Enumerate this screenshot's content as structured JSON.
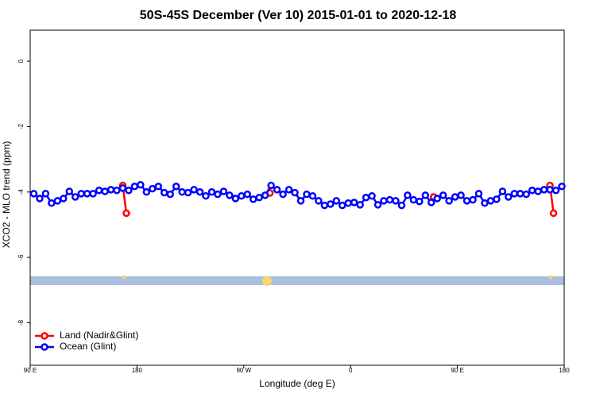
{
  "chart_data": {
    "type": "line",
    "title": "50S-45S December (Ver 10)   2015-01-01 to 2020-12-18",
    "x_label": "Longitude (deg E)",
    "y_label": "XCO2 - MLO trend (ppm)",
    "xlim": [
      90,
      540
    ],
    "xticks": [
      {
        "value": 90,
        "label": "90 E"
      },
      180,
      {
        "value": 270,
        "label": "90 W"
      },
      {
        "value": 360,
        "label": "0"
      },
      {
        "value": 450,
        "label": "90 E"
      },
      {
        "value": 540,
        "label": "180"
      }
    ],
    "ylim": [
      -9.3,
      0.95
    ],
    "yticks": [
      0,
      -2,
      -4,
      -6,
      -8
    ],
    "legend": "bottom-left",
    "series": [
      {
        "name": "Land (Nadir&Glint)",
        "color": "#ff0000",
        "x": [
          168,
          171,
          null,
          292,
          null,
          430,
          null,
          528,
          531
        ],
        "values": [
          -3.8,
          -4.65,
          null,
          -4.03,
          null,
          -4.15,
          null,
          -3.8,
          -4.65
        ]
      },
      {
        "name": "Ocean (Glint)",
        "color": "#0000ff",
        "x": [
          93,
          98,
          103,
          108,
          113,
          118,
          123,
          128,
          133,
          138,
          143,
          148,
          153,
          158,
          163,
          168,
          173,
          178,
          183,
          188,
          193,
          198,
          203,
          208,
          213,
          218,
          223,
          228,
          233,
          238,
          243,
          248,
          253,
          258,
          263,
          268,
          273,
          278,
          283,
          288,
          293,
          298,
          303,
          308,
          313,
          318,
          323,
          328,
          333,
          338,
          343,
          348,
          353,
          358,
          363,
          368,
          373,
          378,
          383,
          388,
          393,
          398,
          403,
          408,
          413,
          418,
          423,
          428,
          433,
          438,
          443,
          448,
          453,
          458,
          463,
          468,
          473,
          478,
          483,
          488,
          493,
          498,
          503,
          508,
          513,
          518,
          523,
          528,
          533,
          538
        ],
        "values": [
          -4.05,
          -4.2,
          -4.05,
          -4.34,
          -4.27,
          -4.2,
          -3.98,
          -4.15,
          -4.05,
          -4.05,
          -4.05,
          -3.95,
          -3.98,
          -3.93,
          -3.95,
          -3.88,
          -3.95,
          -3.83,
          -3.78,
          -4.0,
          -3.9,
          -3.83,
          -4.02,
          -4.07,
          -3.83,
          -4.0,
          -4.02,
          -3.93,
          -4.0,
          -4.12,
          -4.0,
          -4.07,
          -3.98,
          -4.1,
          -4.2,
          -4.12,
          -4.07,
          -4.22,
          -4.17,
          -4.1,
          -3.8,
          -3.93,
          -4.07,
          -3.93,
          -4.02,
          -4.27,
          -4.07,
          -4.12,
          -4.27,
          -4.41,
          -4.37,
          -4.27,
          -4.41,
          -4.34,
          -4.32,
          -4.39,
          -4.17,
          -4.12,
          -4.39,
          -4.27,
          -4.24,
          -4.27,
          -4.41,
          -4.1,
          -4.24,
          -4.29,
          -4.1,
          -4.32,
          -4.2,
          -4.1,
          -4.27,
          -4.15,
          -4.1,
          -4.27,
          -4.24,
          -4.05,
          -4.34,
          -4.27,
          -4.22,
          -3.98,
          -4.15,
          -4.05,
          -4.05,
          -4.07,
          -3.95,
          -3.98,
          -3.93,
          -3.93,
          -3.95,
          -3.83
        ]
      }
    ]
  }
}
